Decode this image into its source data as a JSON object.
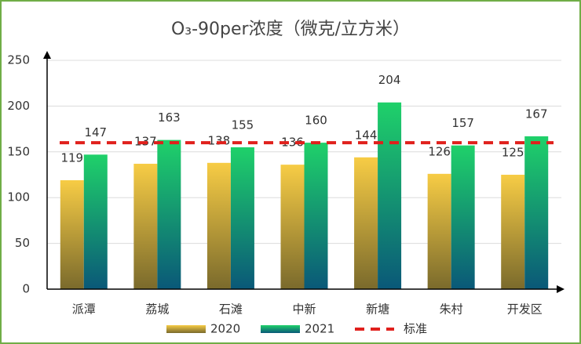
{
  "chart_data": {
    "type": "bar",
    "title": "O₃-90per浓度（微克/立方米）",
    "categories": [
      "派潭",
      "荔城",
      "石滩",
      "中新",
      "新塘",
      "朱村",
      "开发区"
    ],
    "series": [
      {
        "name": "2020",
        "color": "#f7cc45",
        "gradient_to": "#7a6a2c",
        "values": [
          119,
          137,
          138,
          136,
          144,
          126,
          125
        ]
      },
      {
        "name": "2021",
        "color": "#1fd16a",
        "gradient_to": "#0a5878",
        "values": [
          147,
          163,
          155,
          160,
          204,
          157,
          167
        ]
      }
    ],
    "reference_line": {
      "name": "标准",
      "value": 160,
      "color": "#e0201c"
    },
    "ylim": [
      0,
      250
    ],
    "yticks": [
      0,
      50,
      100,
      150,
      200,
      250
    ],
    "grid": true
  }
}
